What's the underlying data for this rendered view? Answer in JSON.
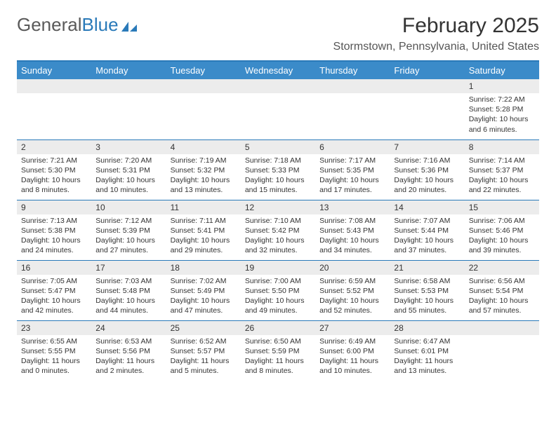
{
  "brand": {
    "part1": "General",
    "part2": "Blue"
  },
  "title": "February 2025",
  "location": "Stormstown, Pennsylvania, United States",
  "colors": {
    "header_bar": "#3b8bc9",
    "divider": "#2a7ab9",
    "daynum_bg": "#ececec",
    "text": "#333333",
    "brand_gray": "#5a5a5a",
    "brand_blue": "#2a7ab9"
  },
  "weekdays": [
    "Sunday",
    "Monday",
    "Tuesday",
    "Wednesday",
    "Thursday",
    "Friday",
    "Saturday"
  ],
  "weeks": [
    [
      null,
      null,
      null,
      null,
      null,
      null,
      {
        "n": "1",
        "sr": "Sunrise: 7:22 AM",
        "ss": "Sunset: 5:28 PM",
        "dl": "Daylight: 10 hours and 6 minutes."
      }
    ],
    [
      {
        "n": "2",
        "sr": "Sunrise: 7:21 AM",
        "ss": "Sunset: 5:30 PM",
        "dl": "Daylight: 10 hours and 8 minutes."
      },
      {
        "n": "3",
        "sr": "Sunrise: 7:20 AM",
        "ss": "Sunset: 5:31 PM",
        "dl": "Daylight: 10 hours and 10 minutes."
      },
      {
        "n": "4",
        "sr": "Sunrise: 7:19 AM",
        "ss": "Sunset: 5:32 PM",
        "dl": "Daylight: 10 hours and 13 minutes."
      },
      {
        "n": "5",
        "sr": "Sunrise: 7:18 AM",
        "ss": "Sunset: 5:33 PM",
        "dl": "Daylight: 10 hours and 15 minutes."
      },
      {
        "n": "6",
        "sr": "Sunrise: 7:17 AM",
        "ss": "Sunset: 5:35 PM",
        "dl": "Daylight: 10 hours and 17 minutes."
      },
      {
        "n": "7",
        "sr": "Sunrise: 7:16 AM",
        "ss": "Sunset: 5:36 PM",
        "dl": "Daylight: 10 hours and 20 minutes."
      },
      {
        "n": "8",
        "sr": "Sunrise: 7:14 AM",
        "ss": "Sunset: 5:37 PM",
        "dl": "Daylight: 10 hours and 22 minutes."
      }
    ],
    [
      {
        "n": "9",
        "sr": "Sunrise: 7:13 AM",
        "ss": "Sunset: 5:38 PM",
        "dl": "Daylight: 10 hours and 24 minutes."
      },
      {
        "n": "10",
        "sr": "Sunrise: 7:12 AM",
        "ss": "Sunset: 5:39 PM",
        "dl": "Daylight: 10 hours and 27 minutes."
      },
      {
        "n": "11",
        "sr": "Sunrise: 7:11 AM",
        "ss": "Sunset: 5:41 PM",
        "dl": "Daylight: 10 hours and 29 minutes."
      },
      {
        "n": "12",
        "sr": "Sunrise: 7:10 AM",
        "ss": "Sunset: 5:42 PM",
        "dl": "Daylight: 10 hours and 32 minutes."
      },
      {
        "n": "13",
        "sr": "Sunrise: 7:08 AM",
        "ss": "Sunset: 5:43 PM",
        "dl": "Daylight: 10 hours and 34 minutes."
      },
      {
        "n": "14",
        "sr": "Sunrise: 7:07 AM",
        "ss": "Sunset: 5:44 PM",
        "dl": "Daylight: 10 hours and 37 minutes."
      },
      {
        "n": "15",
        "sr": "Sunrise: 7:06 AM",
        "ss": "Sunset: 5:46 PM",
        "dl": "Daylight: 10 hours and 39 minutes."
      }
    ],
    [
      {
        "n": "16",
        "sr": "Sunrise: 7:05 AM",
        "ss": "Sunset: 5:47 PM",
        "dl": "Daylight: 10 hours and 42 minutes."
      },
      {
        "n": "17",
        "sr": "Sunrise: 7:03 AM",
        "ss": "Sunset: 5:48 PM",
        "dl": "Daylight: 10 hours and 44 minutes."
      },
      {
        "n": "18",
        "sr": "Sunrise: 7:02 AM",
        "ss": "Sunset: 5:49 PM",
        "dl": "Daylight: 10 hours and 47 minutes."
      },
      {
        "n": "19",
        "sr": "Sunrise: 7:00 AM",
        "ss": "Sunset: 5:50 PM",
        "dl": "Daylight: 10 hours and 49 minutes."
      },
      {
        "n": "20",
        "sr": "Sunrise: 6:59 AM",
        "ss": "Sunset: 5:52 PM",
        "dl": "Daylight: 10 hours and 52 minutes."
      },
      {
        "n": "21",
        "sr": "Sunrise: 6:58 AM",
        "ss": "Sunset: 5:53 PM",
        "dl": "Daylight: 10 hours and 55 minutes."
      },
      {
        "n": "22",
        "sr": "Sunrise: 6:56 AM",
        "ss": "Sunset: 5:54 PM",
        "dl": "Daylight: 10 hours and 57 minutes."
      }
    ],
    [
      {
        "n": "23",
        "sr": "Sunrise: 6:55 AM",
        "ss": "Sunset: 5:55 PM",
        "dl": "Daylight: 11 hours and 0 minutes."
      },
      {
        "n": "24",
        "sr": "Sunrise: 6:53 AM",
        "ss": "Sunset: 5:56 PM",
        "dl": "Daylight: 11 hours and 2 minutes."
      },
      {
        "n": "25",
        "sr": "Sunrise: 6:52 AM",
        "ss": "Sunset: 5:57 PM",
        "dl": "Daylight: 11 hours and 5 minutes."
      },
      {
        "n": "26",
        "sr": "Sunrise: 6:50 AM",
        "ss": "Sunset: 5:59 PM",
        "dl": "Daylight: 11 hours and 8 minutes."
      },
      {
        "n": "27",
        "sr": "Sunrise: 6:49 AM",
        "ss": "Sunset: 6:00 PM",
        "dl": "Daylight: 11 hours and 10 minutes."
      },
      {
        "n": "28",
        "sr": "Sunrise: 6:47 AM",
        "ss": "Sunset: 6:01 PM",
        "dl": "Daylight: 11 hours and 13 minutes."
      },
      null
    ]
  ]
}
